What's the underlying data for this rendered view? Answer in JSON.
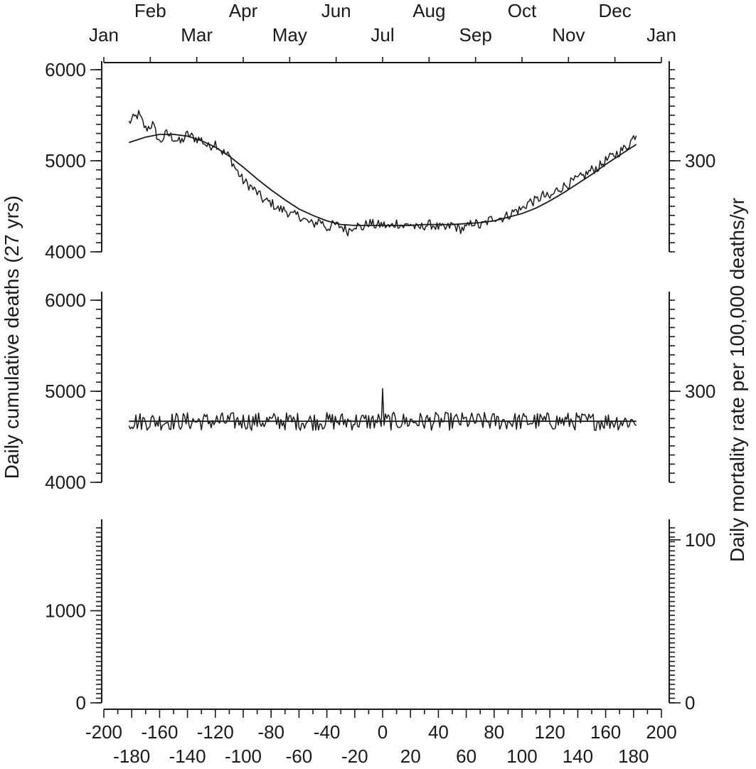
{
  "chart_data": {
    "type": "line",
    "x_axis": {
      "range": [
        -200,
        200
      ],
      "ticks_upper_row": [
        -200,
        -160,
        -120,
        -80,
        -40,
        0,
        40,
        80,
        120,
        160,
        200
      ],
      "ticks_lower_row": [
        -180,
        -140,
        -100,
        -60,
        -20,
        20,
        60,
        100,
        140,
        180
      ]
    },
    "month_axis": {
      "lower_row": [
        "Jan",
        "Mar",
        "May",
        "Jul",
        "Sep",
        "Nov",
        "Jan"
      ],
      "upper_row": [
        "Feb",
        "Apr",
        "Jun",
        "Aug",
        "Oct",
        "Dec"
      ]
    },
    "left_ylabel": "Daily cumulative deaths (27 yrs)",
    "right_ylabel": "Daily mortality rate per 100,000 deaths/yr",
    "panels": [
      {
        "id": "top",
        "ylim": [
          4000,
          6000
        ],
        "left_ticks": [
          "6000",
          "5000",
          "4000"
        ],
        "left_tick_values": [
          6000,
          5000,
          4000
        ],
        "right_ticks": [
          "300"
        ],
        "right_tick_values": [
          5000
        ],
        "series": [
          {
            "kind": "observed",
            "x_start": -182,
            "x_end": 182,
            "x": [
              -182,
              -175,
              -170,
              -165,
              -160,
              -155,
              -150,
              -145,
              -140,
              -135,
              -130,
              -125,
              -120,
              -115,
              -110,
              -105,
              -100,
              -95,
              -90,
              -85,
              -80,
              -75,
              -70,
              -65,
              -60,
              -55,
              -50,
              -45,
              -40,
              -35,
              -30,
              -25,
              -20,
              -15,
              -10,
              -5,
              0,
              5,
              10,
              15,
              20,
              25,
              30,
              35,
              40,
              45,
              50,
              55,
              60,
              65,
              70,
              75,
              80,
              85,
              90,
              95,
              100,
              105,
              110,
              115,
              120,
              125,
              130,
              135,
              140,
              145,
              150,
              155,
              160,
              165,
              170,
              175,
              182
            ],
            "values": [
              5420,
              5510,
              5350,
              5400,
              5200,
              5300,
              5250,
              5200,
              5290,
              5250,
              5230,
              5150,
              5200,
              5100,
              5050,
              4900,
              4780,
              4720,
              4650,
              4560,
              4540,
              4470,
              4460,
              4400,
              4400,
              4340,
              4300,
              4350,
              4260,
              4300,
              4280,
              4230,
              4300,
              4260,
              4320,
              4290,
              4300,
              4270,
              4320,
              4280,
              4310,
              4250,
              4290,
              4300,
              4270,
              4250,
              4300,
              4250,
              4260,
              4330,
              4280,
              4330,
              4380,
              4370,
              4400,
              4450,
              4470,
              4550,
              4560,
              4620,
              4590,
              4680,
              4720,
              4760,
              4800,
              4840,
              4900,
              4930,
              5000,
              5050,
              5100,
              5150,
              5300
            ]
          },
          {
            "kind": "smooth-fit",
            "x": [
              -182,
              -170,
              -160,
              -150,
              -140,
              -130,
              -120,
              -110,
              -100,
              -90,
              -80,
              -70,
              -60,
              -50,
              -40,
              -30,
              -20,
              -10,
              0,
              10,
              20,
              30,
              40,
              50,
              60,
              70,
              80,
              90,
              100,
              110,
              120,
              130,
              140,
              150,
              160,
              170,
              182
            ],
            "values": [
              5200,
              5260,
              5290,
              5290,
              5270,
              5220,
              5150,
              5050,
              4930,
              4800,
              4680,
              4570,
              4470,
              4400,
              4340,
              4300,
              4290,
              4290,
              4290,
              4290,
              4290,
              4300,
              4300,
              4300,
              4310,
              4320,
              4340,
              4380,
              4420,
              4480,
              4560,
              4650,
              4750,
              4850,
              4960,
              5060,
              5180
            ]
          }
        ]
      },
      {
        "id": "middle",
        "ylim": [
          4000,
          6000
        ],
        "left_ticks": [
          "6000",
          "5000",
          "4000"
        ],
        "left_tick_values": [
          6000,
          5000,
          4000
        ],
        "right_ticks": [
          "300"
        ],
        "right_tick_values": [
          5000
        ],
        "series": [
          {
            "kind": "residual",
            "x_start": -182,
            "x_end": 182,
            "baseline": 4670,
            "spike_x": 0,
            "spike_value": 5030
          },
          {
            "kind": "baseline",
            "x": [
              -182,
              182
            ],
            "values": [
              4670,
              4670
            ]
          }
        ]
      },
      {
        "id": "bottom",
        "ylim": [
          0,
          1900
        ],
        "left_ticks": [
          "1000",
          "0"
        ],
        "left_tick_values": [
          1000,
          0
        ],
        "right_ticks": [
          "100",
          "0"
        ],
        "right_tick_values": [
          1770,
          0
        ],
        "series": []
      }
    ]
  }
}
